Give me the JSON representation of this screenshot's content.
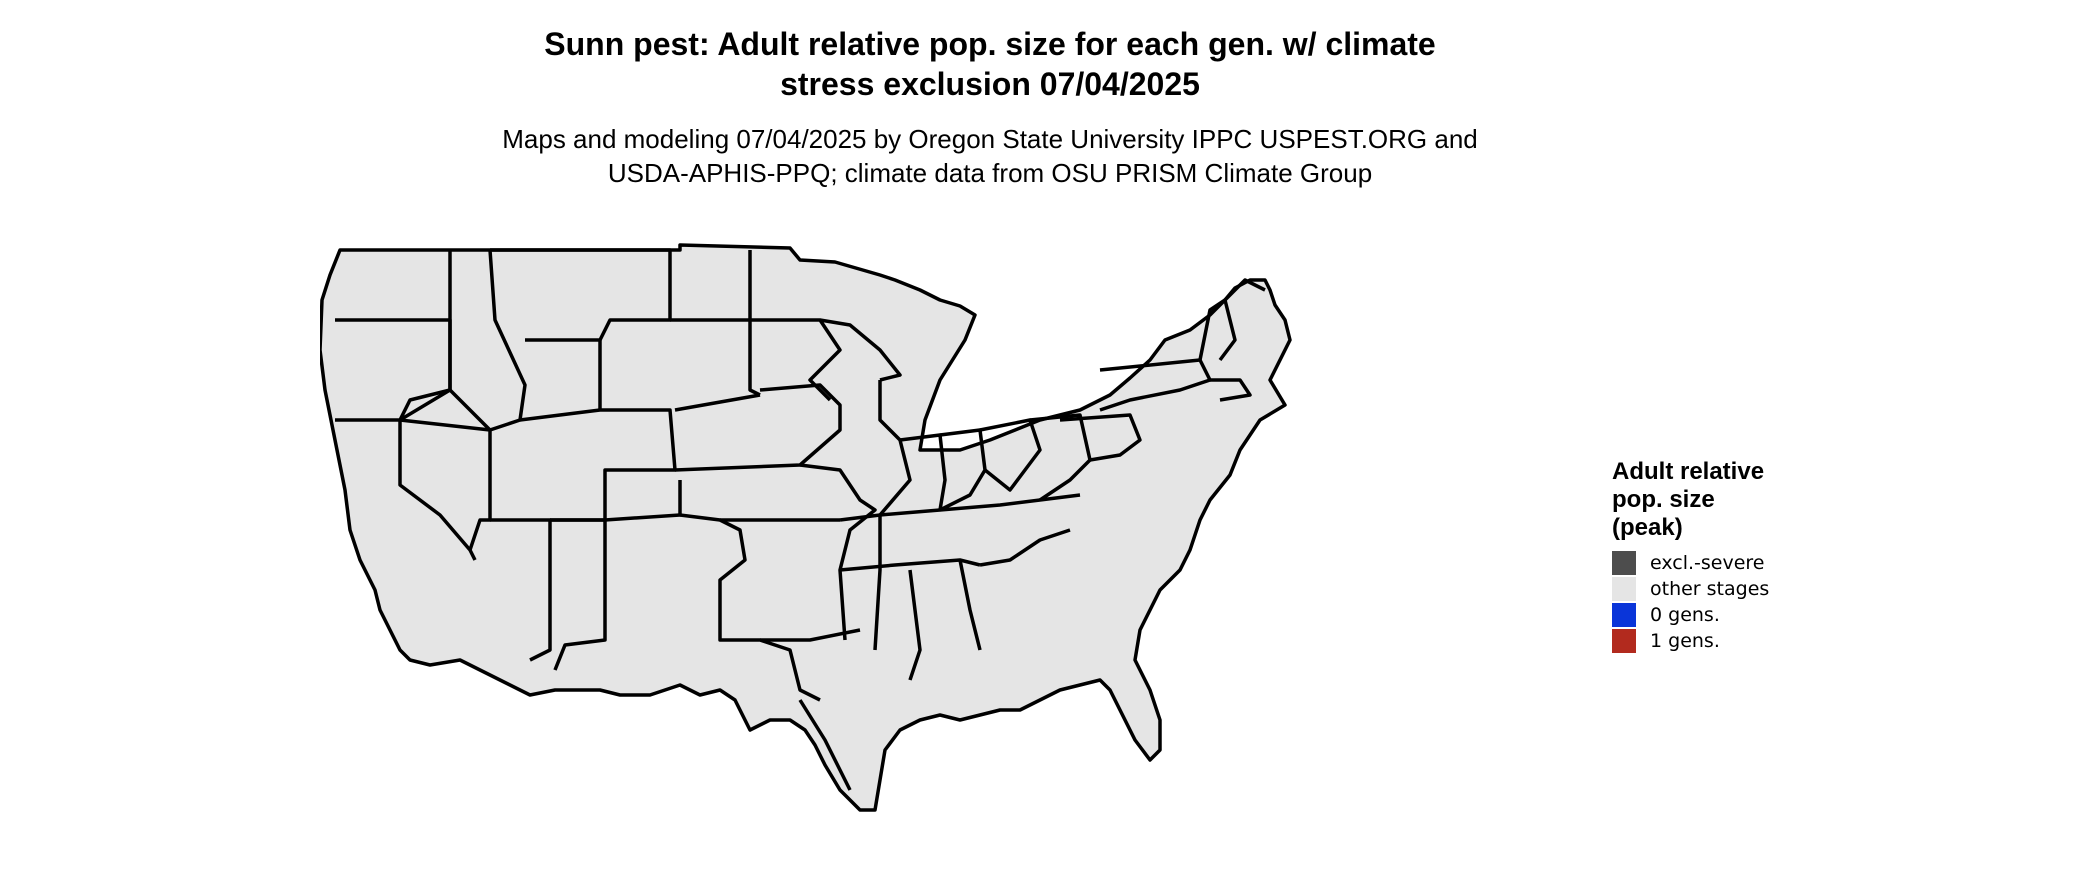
{
  "title": {
    "line1": "Sunn pest: Adult relative pop. size for each gen. w/ climate",
    "line2": "stress exclusion 07/04/2025"
  },
  "subtitle": {
    "line1": "Maps and modeling 07/04/2025 by Oregon State University IPPC USPEST.ORG and",
    "line2": "USDA-APHIS-PPQ; climate data from OSU PRISM Climate Group"
  },
  "legend": {
    "title_line1": "Adult relative",
    "title_line2": "pop. size",
    "title_line3": "(peak)",
    "items": [
      {
        "label": "excl.-severe",
        "color": "#4d4d4d"
      },
      {
        "label": "other stages",
        "color": "#e5e5e5"
      },
      {
        "label": "0 gens.",
        "color": "#0a35d9"
      },
      {
        "label": "1 gens.",
        "color": "#b22a1e"
      }
    ]
  },
  "map": {
    "region": "Contiguous United States",
    "colors": {
      "background_land": "#e5e5e5",
      "zero_gens_dark": "#0a35d9",
      "zero_gens_mid": "#1a66ff",
      "zero_gens_light": "#1aa3ff",
      "excluded": "#4d4d4d",
      "border": "#000000"
    }
  }
}
